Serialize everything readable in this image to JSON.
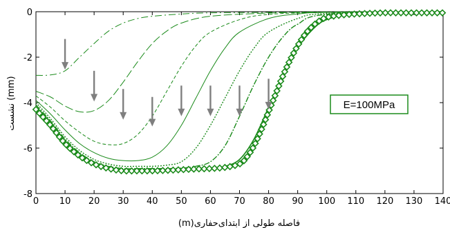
{
  "chart_data": {
    "type": "line",
    "title": "",
    "xlabel": "فاصله طولی از ابتدای‌حفاری(m)",
    "ylabel": "نشست (mm)",
    "xlim": [
      0,
      140
    ],
    "ylim": [
      -8,
      0
    ],
    "xticks": [
      0,
      10,
      20,
      30,
      40,
      50,
      60,
      70,
      80,
      90,
      100,
      110,
      120,
      130,
      140
    ],
    "yticks": [
      0,
      -2,
      -4,
      -6,
      -8
    ],
    "grid": false,
    "line_color": "#1a8a1a",
    "arrow_color": "#7f7f7f",
    "annotation": {
      "text": "E=100MPa",
      "box_color": "#1a8a1a"
    },
    "arrows": [
      {
        "x": 10,
        "y_from": -1.2,
        "y_to": -2.55
      },
      {
        "x": 20,
        "y_from": -2.6,
        "y_to": -3.95
      },
      {
        "x": 30,
        "y_from": -3.4,
        "y_to": -4.75
      },
      {
        "x": 40,
        "y_from": -3.75,
        "y_to": -5.05
      },
      {
        "x": 50,
        "y_from": -3.25,
        "y_to": -4.6
      },
      {
        "x": 60,
        "y_from": -3.25,
        "y_to": -4.6
      },
      {
        "x": 70,
        "y_from": -3.25,
        "y_to": -4.6
      },
      {
        "x": 80,
        "y_from": -2.95,
        "y_to": -4.3
      }
    ],
    "series": [
      {
        "front": 10,
        "start": -2.8,
        "dip": 0.0,
        "dash": "10,4,2,4",
        "width": 1.0,
        "marker": false,
        "x": [
          0,
          5,
          10,
          15,
          20,
          25,
          30,
          35,
          40,
          50,
          60,
          80,
          100,
          140
        ],
        "y": [
          -2.8,
          -2.78,
          -2.6,
          -2.0,
          -1.4,
          -0.85,
          -0.5,
          -0.3,
          -0.2,
          -0.1,
          -0.05,
          -0.03,
          -0.01,
          0
        ]
      },
      {
        "front": 20,
        "start": -3.5,
        "dip": 0.0,
        "dash": "12,4",
        "width": 1.0,
        "marker": false,
        "x": [
          0,
          5,
          10,
          15,
          20,
          25,
          30,
          35,
          40,
          45,
          50,
          60,
          80,
          100,
          140
        ],
        "y": [
          -3.5,
          -3.75,
          -4.15,
          -4.4,
          -4.35,
          -3.9,
          -3.1,
          -2.2,
          -1.4,
          -0.85,
          -0.5,
          -0.2,
          -0.06,
          -0.02,
          0
        ]
      },
      {
        "front": 30,
        "start": -3.7,
        "dip": 0.0,
        "dash": "5,3",
        "width": 1.0,
        "marker": false,
        "x": [
          0,
          5,
          10,
          15,
          20,
          25,
          30,
          35,
          40,
          45,
          50,
          55,
          60,
          70,
          80,
          100,
          140
        ],
        "y": [
          -3.7,
          -4.2,
          -4.8,
          -5.3,
          -5.7,
          -5.85,
          -5.8,
          -5.4,
          -4.6,
          -3.5,
          -2.4,
          -1.5,
          -0.9,
          -0.35,
          -0.12,
          -0.03,
          0
        ]
      },
      {
        "front": 40,
        "start": -3.9,
        "dip": 0.0,
        "dash": "",
        "width": 1.0,
        "marker": false,
        "x": [
          0,
          5,
          10,
          15,
          20,
          25,
          30,
          35,
          40,
          45,
          50,
          55,
          60,
          65,
          70,
          80,
          90,
          100,
          140
        ],
        "y": [
          -3.9,
          -4.5,
          -5.2,
          -5.8,
          -6.2,
          -6.45,
          -6.55,
          -6.55,
          -6.4,
          -5.9,
          -5.0,
          -3.8,
          -2.6,
          -1.6,
          -0.9,
          -0.3,
          -0.1,
          -0.03,
          0
        ]
      },
      {
        "front": 50,
        "start": -4.0,
        "dip": 0.0,
        "dash": "2,2",
        "width": 1.4,
        "marker": false,
        "x": [
          0,
          5,
          10,
          15,
          20,
          25,
          30,
          35,
          40,
          45,
          50,
          55,
          60,
          65,
          70,
          75,
          80,
          90,
          100,
          140
        ],
        "y": [
          -4.0,
          -4.7,
          -5.5,
          -6.1,
          -6.5,
          -6.7,
          -6.8,
          -6.8,
          -6.8,
          -6.75,
          -6.6,
          -6.0,
          -5.0,
          -3.8,
          -2.6,
          -1.6,
          -0.9,
          -0.3,
          -0.08,
          0
        ]
      },
      {
        "front": 60,
        "start": -4.1,
        "dip": 0.0,
        "dash": "8,2,2,2",
        "width": 1.4,
        "marker": false,
        "x": [
          0,
          5,
          10,
          15,
          20,
          25,
          30,
          35,
          40,
          45,
          50,
          55,
          60,
          65,
          70,
          75,
          80,
          85,
          90,
          100,
          140
        ],
        "y": [
          -4.1,
          -4.8,
          -5.6,
          -6.2,
          -6.6,
          -6.8,
          -6.9,
          -6.9,
          -6.9,
          -6.9,
          -6.88,
          -6.8,
          -6.6,
          -5.9,
          -4.6,
          -3.2,
          -2.0,
          -1.1,
          -0.55,
          -0.12,
          0
        ]
      },
      {
        "front": 70,
        "start": -4.2,
        "dip": 0.0,
        "dash": "",
        "width": 1.6,
        "marker": false,
        "x": [
          0,
          5,
          10,
          15,
          20,
          25,
          30,
          35,
          40,
          45,
          50,
          55,
          60,
          65,
          70,
          75,
          80,
          85,
          90,
          95,
          100,
          110,
          140
        ],
        "y": [
          -4.2,
          -4.9,
          -5.7,
          -6.3,
          -6.65,
          -6.85,
          -6.95,
          -6.95,
          -6.95,
          -6.95,
          -6.95,
          -6.93,
          -6.9,
          -6.8,
          -6.5,
          -5.6,
          -4.2,
          -2.8,
          -1.6,
          -0.8,
          -0.35,
          -0.1,
          0
        ]
      },
      {
        "front": 80,
        "start": -4.3,
        "dip": 0.0,
        "dash": "",
        "width": 1.4,
        "marker": true,
        "x": [
          0,
          5,
          10,
          15,
          20,
          25,
          30,
          35,
          40,
          45,
          50,
          55,
          60,
          65,
          70,
          72.5,
          75,
          77.5,
          80,
          82.5,
          85,
          87.5,
          90,
          92.5,
          95,
          97.5,
          100,
          105,
          110,
          115,
          120,
          125,
          130,
          135,
          140
        ],
        "y": [
          -4.3,
          -5.0,
          -5.8,
          -6.35,
          -6.7,
          -6.9,
          -7.0,
          -7.0,
          -7.0,
          -6.98,
          -6.95,
          -6.92,
          -6.9,
          -6.85,
          -6.7,
          -6.4,
          -5.9,
          -5.2,
          -4.4,
          -3.6,
          -2.8,
          -2.1,
          -1.5,
          -1.0,
          -0.65,
          -0.4,
          -0.25,
          -0.15,
          -0.1,
          -0.07,
          -0.05,
          -0.05,
          -0.05,
          -0.05,
          -0.05
        ]
      }
    ]
  }
}
